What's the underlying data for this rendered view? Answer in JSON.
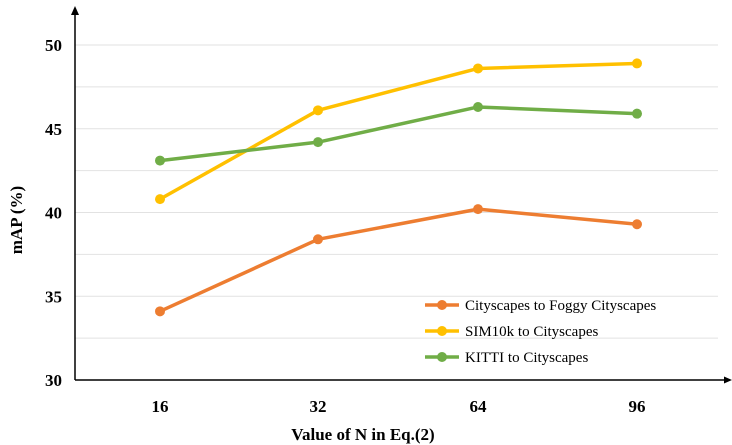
{
  "chart_data": {
    "type": "line",
    "categories": [
      "16",
      "32",
      "64",
      "96"
    ],
    "xlabel": "Value of N in Eq.(2)",
    "ylabel": "mAP (%)",
    "ylim": [
      30,
      50
    ],
    "yticks": [
      "30",
      "35",
      "40",
      "45",
      "50"
    ],
    "grid": true,
    "legend_position": "bottom-right",
    "series": [
      {
        "name": "Cityscapes to Foggy Cityscapes",
        "color": "#ED7D31",
        "values": [
          34.1,
          38.4,
          40.2,
          39.3
        ]
      },
      {
        "name": "SIM10k to Cityscapes",
        "color": "#FFC000",
        "values": [
          40.8,
          46.1,
          48.6,
          48.9
        ]
      },
      {
        "name": "KITTI to Cityscapes",
        "color": "#70AD47",
        "values": [
          43.1,
          44.2,
          46.3,
          45.9
        ]
      }
    ]
  }
}
